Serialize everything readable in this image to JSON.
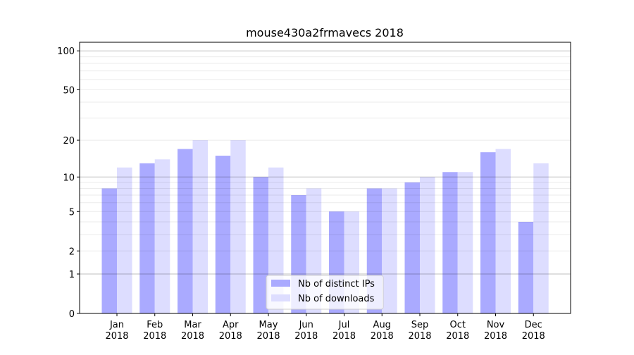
{
  "chart_data": {
    "type": "bar",
    "title": "mouse430a2frmavecs 2018",
    "xlabel": "",
    "ylabel": "",
    "yscale": "symlog",
    "ylim": [
      0,
      116
    ],
    "yticks": [
      0,
      1,
      2,
      5,
      10,
      20,
      50,
      100
    ],
    "ytick_labels": [
      "0",
      "1",
      "2",
      "5",
      "10",
      "20",
      "50",
      "100"
    ],
    "categories": [
      "Jan\n2018",
      "Feb\n2018",
      "Mar\n2018",
      "Apr\n2018",
      "May\n2018",
      "Jun\n2018",
      "Jul\n2018",
      "Aug\n2018",
      "Sep\n2018",
      "Oct\n2018",
      "Nov\n2018",
      "Dec\n2018"
    ],
    "series": [
      {
        "name": "Nb of distinct IPs",
        "color": "#aaaaff",
        "values": [
          8,
          13,
          17,
          15,
          10,
          7,
          5,
          8,
          9,
          11,
          16,
          4
        ]
      },
      {
        "name": "Nb of downloads",
        "color": "#ddddff",
        "values": [
          12,
          14,
          20,
          20,
          12,
          8,
          5,
          8,
          10,
          11,
          17,
          13
        ]
      }
    ],
    "grid": true,
    "legend_position": "bottom-center"
  }
}
